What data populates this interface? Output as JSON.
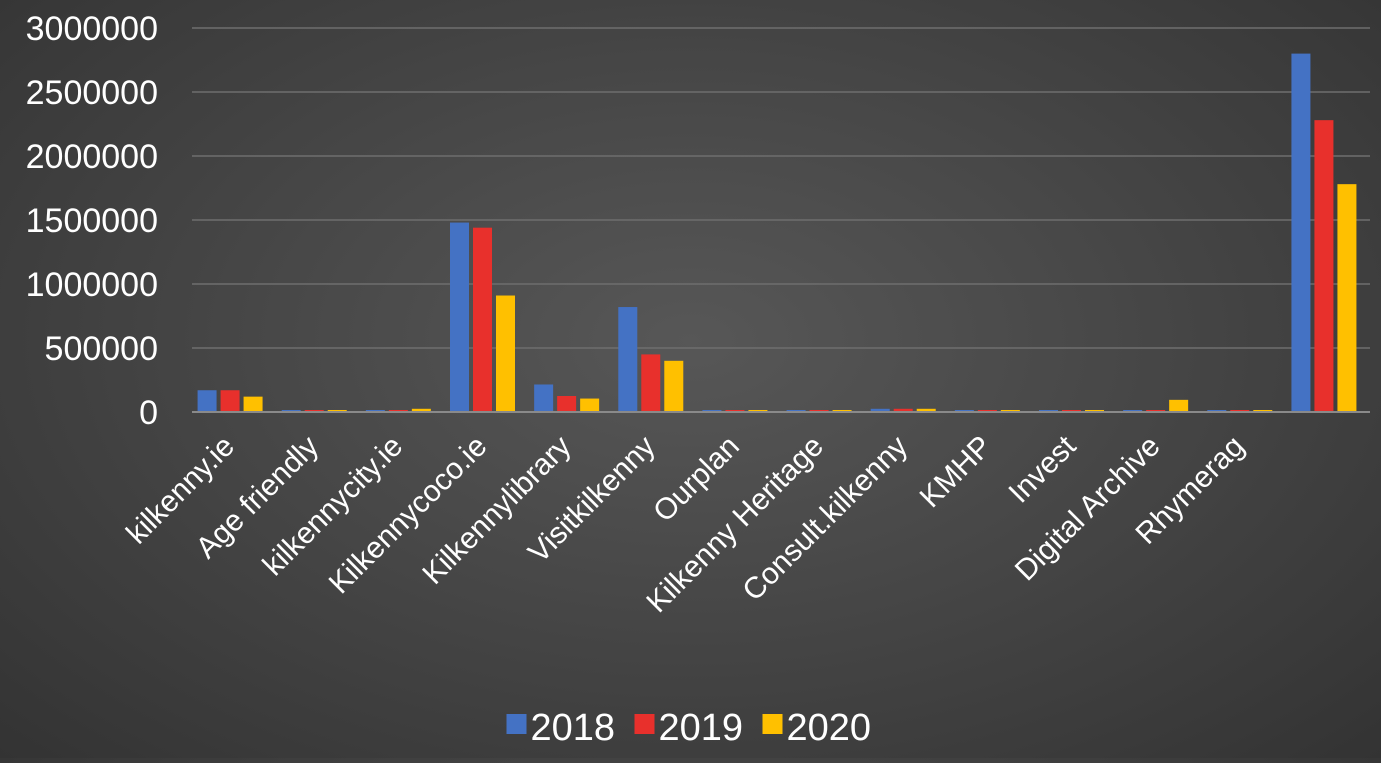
{
  "chart_data": {
    "type": "bar",
    "title": "",
    "xlabel": "",
    "ylabel": "",
    "categories": [
      "kilkenny.ie",
      "Age friendly",
      "kilkennycity.ie",
      "Kilkennycoco.ie",
      "Kilkennylibrary",
      "Visitkilkenny",
      "Ourplan",
      "Kilkenny Heritage",
      "Consult.kilkenny",
      "KMHP",
      "Invest",
      "Digital Archive",
      "Rhymerag",
      ""
    ],
    "series": [
      {
        "name": "2018",
        "color": "#4472C4",
        "values": [
          170000,
          5000,
          10000,
          1480000,
          215000,
          820000,
          5000,
          8000,
          25000,
          5000,
          3000,
          2000,
          3000,
          2800000
        ]
      },
      {
        "name": "2019",
        "color": "#E8302C",
        "values": [
          170000,
          5000,
          10000,
          1440000,
          125000,
          450000,
          5000,
          10000,
          25000,
          5000,
          5000,
          2000,
          3000,
          2280000
        ]
      },
      {
        "name": "2020",
        "color": "#FFC000",
        "values": [
          120000,
          5000,
          25000,
          910000,
          105000,
          400000,
          5000,
          10000,
          25000,
          5000,
          5000,
          95000,
          5000,
          1780000
        ]
      }
    ],
    "yticks": [
      "0",
      "500000",
      "1000000",
      "1500000",
      "2000000",
      "2500000",
      "3000000"
    ],
    "ylim": [
      0,
      3000000
    ],
    "grid": true,
    "legend_position": "bottom"
  }
}
